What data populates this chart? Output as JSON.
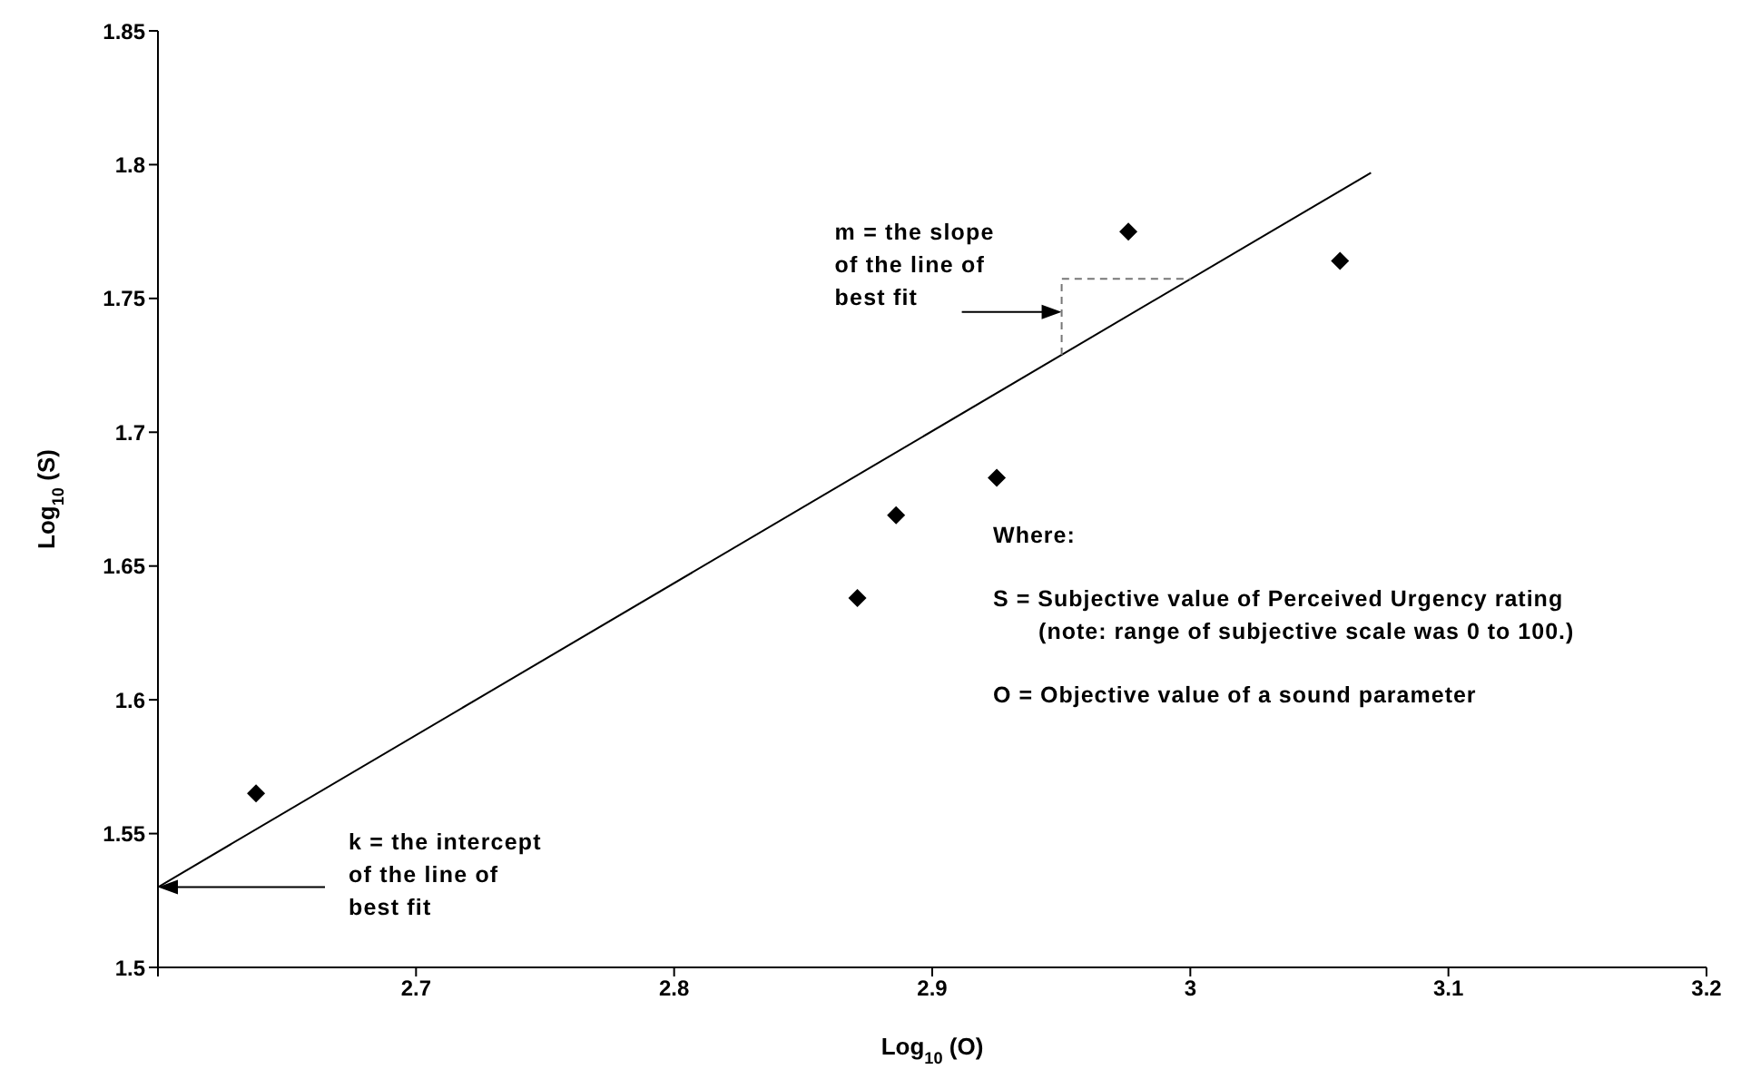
{
  "chart_data": {
    "type": "scatter",
    "xlabel": "Log$_{10}$ (O)",
    "ylabel": "Log$_{10}$ (S)",
    "xlim": [
      2.6,
      3.2
    ],
    "xticks": [
      {
        "value": 2.6,
        "label": null
      },
      2.7,
      2.8,
      2.9,
      3,
      3.1,
      3.2
    ],
    "ylim": [
      1.5,
      1.85
    ],
    "yticks": [
      1.5,
      1.55,
      1.6,
      1.65,
      1.7,
      1.75,
      1.8,
      1.85
    ],
    "grid": false,
    "legend": false,
    "marker": "diamond",
    "series": [
      {
        "color": "#000000",
        "x": [
          2.638,
          2.871,
          2.886,
          2.925,
          2.976,
          3.058
        ],
        "values": [
          1.565,
          1.638,
          1.669,
          1.683,
          1.775,
          1.764
        ]
      },
      {
        "type": "line",
        "color": "#000000",
        "x": [
          2.6,
          3.07
        ],
        "values": [
          1.53,
          1.797
        ],
        "marker": "none",
        "line_style": "solid"
      }
    ],
    "annotations": [
      "m = the slope\nof the line of\nbest fit",
      "k = the intercept\nof the line of\nbest fit",
      "Where:",
      "S = Subjective value of Perceived Urgency rating\n(note:  range of subjective scale was 0 to 100.)",
      "O = Objective value of a sound parameter"
    ]
  }
}
